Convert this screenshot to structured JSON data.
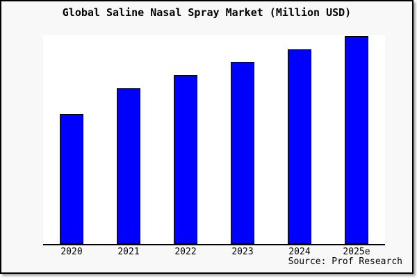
{
  "chart_data": {
    "type": "bar",
    "title": "Global Saline Nasal Spray Market (Million USD)",
    "categories": [
      "2020",
      "2021",
      "2022",
      "2023",
      "2024",
      "2025e"
    ],
    "values": [
      62.5,
      74.9,
      81.3,
      87.6,
      93.6,
      100
    ],
    "values_note": "y-axis is unlabeled in the image; values are relative bar heights normalized to 2025e = 100",
    "xlabel": "",
    "ylabel": "",
    "ylim_relative": [
      0,
      100.7
    ],
    "grid": false,
    "legend": "none",
    "bar_color": "#0000ff",
    "bar_border_color": "#000000",
    "source_label": "Source: Prof Research"
  },
  "colors": {
    "canvas_background": "#f8f8f8",
    "plot_background": "#ffffff",
    "frame_border": "#000000",
    "axis": "#000000",
    "text": "#000000"
  }
}
